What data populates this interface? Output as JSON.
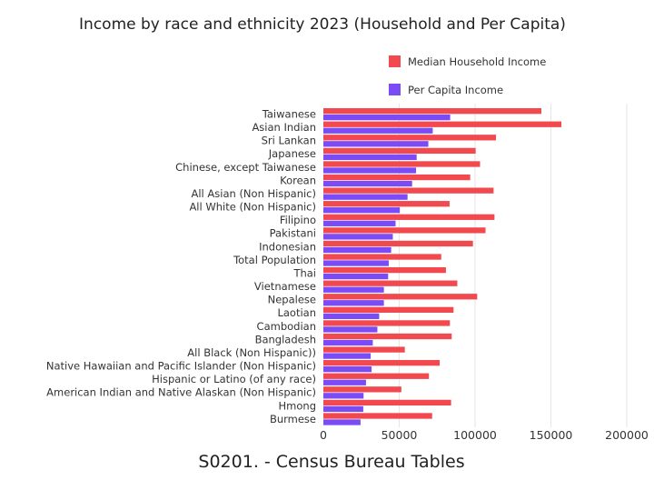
{
  "chart_data": {
    "type": "bar",
    "orientation": "horizontal",
    "title": "Income by race and ethnicity 2023 (Household and Per Capita)",
    "xlabel": "S0201. - Census Bureau Tables",
    "ylabel": "",
    "xlim": [
      0,
      200000
    ],
    "xticks": [
      "0",
      "50000",
      "100000",
      "150000",
      "200000"
    ],
    "grid": true,
    "legend": "top-right",
    "categories": [
      "Taiwanese",
      "Asian Indian",
      "Sri Lankan",
      "Japanese",
      "Chinese, except Taiwanese",
      "Korean",
      "All Asian (Non Hispanic)",
      "All White (Non Hispanic)",
      "Filipino",
      "Pakistani",
      "Indonesian",
      "Total Population",
      "Thai",
      "Vietnamese",
      "Nepalese",
      "Laotian",
      "Cambodian",
      "Bangladesh",
      "All Black (Non Hispanic))",
      "Native Hawaiian and Pacific Islander (Non Hispanic)",
      "Hispanic or Latino (of any race)",
      "American Indian and Native Alaskan (Non Hispanic)",
      "Hmong",
      "Burmese"
    ],
    "series": [
      {
        "name": "Median Household Income",
        "color": "#f2494f",
        "values": [
          143700,
          156900,
          113800,
          100400,
          103300,
          96800,
          112200,
          83200,
          112800,
          106900,
          98600,
          77700,
          80800,
          88300,
          101400,
          85800,
          83400,
          84600,
          53700,
          76700,
          69600,
          51400,
          84200,
          71700
        ]
      },
      {
        "name": "Per Capita Income",
        "color": "#7b4cf5",
        "values": [
          83600,
          72100,
          69200,
          61500,
          61100,
          58500,
          55500,
          50400,
          47600,
          45800,
          44700,
          43100,
          42700,
          39900,
          39900,
          36800,
          35600,
          32600,
          31200,
          31800,
          28100,
          26500,
          26300,
          24500
        ]
      }
    ]
  }
}
